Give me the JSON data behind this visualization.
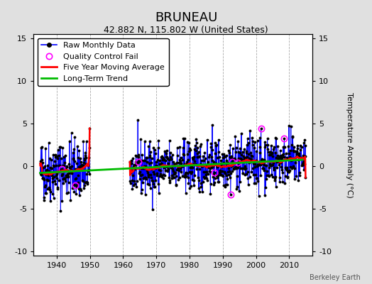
{
  "title": "BRUNEAU",
  "subtitle": "42.882 N, 115.802 W (United States)",
  "ylabel": "Temperature Anomaly (°C)",
  "credit": "Berkeley Earth",
  "xlim": [
    1933,
    2017
  ],
  "ylim": [
    -10.5,
    15.5
  ],
  "yticks": [
    -10,
    -5,
    0,
    5,
    10,
    15
  ],
  "xticks": [
    1940,
    1950,
    1960,
    1970,
    1980,
    1990,
    2000,
    2010
  ],
  "start_year_seg1": 1935,
  "end_year_seg1": 1949,
  "start_year_seg2": 1962,
  "end_year_seg2": 2014,
  "bg_color": "#e0e0e0",
  "plot_bg_color": "#ffffff",
  "raw_line_color": "#0000ff",
  "raw_marker_color": "#000000",
  "qc_fail_color": "#ff00ff",
  "moving_avg_color": "#ff0000",
  "trend_color": "#00bb00",
  "title_fontsize": 13,
  "subtitle_fontsize": 9,
  "legend_fontsize": 8,
  "seed": 42
}
